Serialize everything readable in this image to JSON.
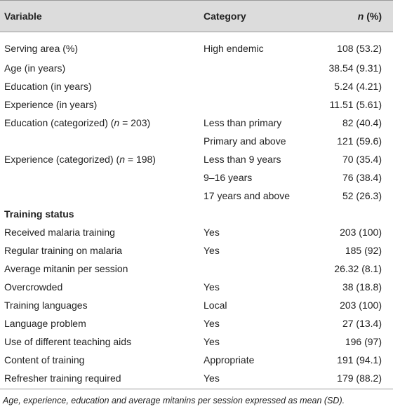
{
  "header": {
    "variable": "Variable",
    "category": "Category",
    "n_label": "n",
    "pct_label": " (%)"
  },
  "rows": [
    {
      "variable": "Serving area (%)",
      "category": "High endemic",
      "value": "108 (53.2)"
    },
    {
      "variable": "Age (in years)",
      "category": "",
      "value": "38.54 (9.31)"
    },
    {
      "variable": "Education (in years)",
      "category": "",
      "value": "5.24 (4.21)"
    },
    {
      "variable": "Experience (in years)",
      "category": "",
      "value": "11.51 (5.61)"
    },
    {
      "variable_prefix": "Education (categorized) (",
      "variable_n": "n",
      "variable_suffix": " = 203)",
      "category": "Less than primary",
      "value": "82 (40.4)"
    },
    {
      "variable": "",
      "category": "Primary and above",
      "value": "121 (59.6)"
    },
    {
      "variable_prefix": "Experience (categorized) (",
      "variable_n": "n",
      "variable_suffix": " = 198)",
      "category": "Less than 9 years",
      "value": "70 (35.4)"
    },
    {
      "variable": "",
      "category": "9–16 years",
      "value": "76 (38.4)"
    },
    {
      "variable": "",
      "category": "17 years and above",
      "value": "52 (26.3)"
    },
    {
      "section": "Training status"
    },
    {
      "variable": "Received malaria training",
      "category": "Yes",
      "value": "203 (100)"
    },
    {
      "variable": "Regular training on malaria",
      "category": "Yes",
      "value": "185 (92)"
    },
    {
      "variable": "Average mitanin per session",
      "category": "",
      "value": "26.32 (8.1)"
    },
    {
      "variable": "Overcrowded",
      "category": "Yes",
      "value": "38 (18.8)"
    },
    {
      "variable": "Training languages",
      "category": "Local",
      "value": "203 (100)"
    },
    {
      "variable": "Language problem",
      "category": "Yes",
      "value": "27 (13.4)"
    },
    {
      "variable": "Use of different teaching aids",
      "category": "Yes",
      "value": "196 (97)"
    },
    {
      "variable": "Content of training",
      "category": "Appropriate",
      "value": "191 (94.1)"
    },
    {
      "variable": "Refresher training required",
      "category": "Yes",
      "value": "179 (88.2)"
    }
  ],
  "footnote": "Age, experience, education and average mitanins per session expressed as mean (SD)."
}
